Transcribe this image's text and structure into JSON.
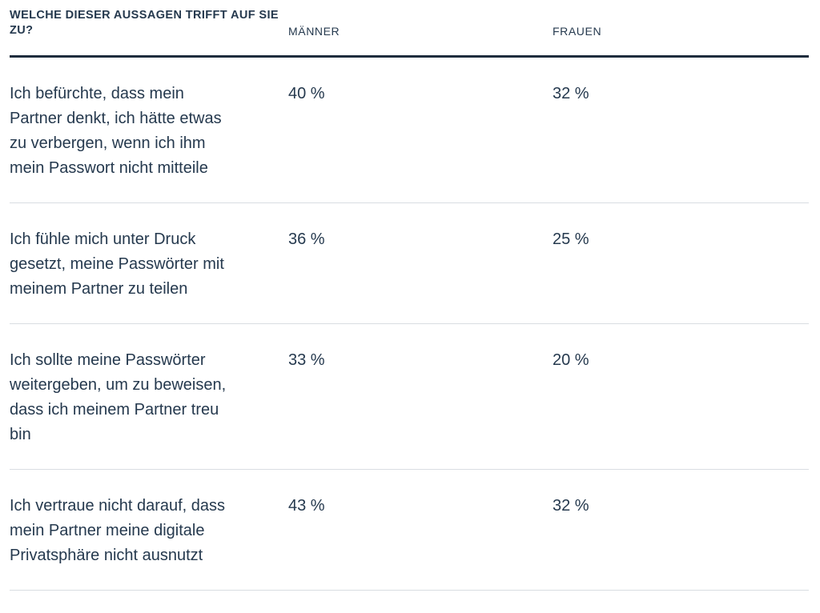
{
  "colors": {
    "text": "#25394E",
    "heavy_rule": "#1E2D3D",
    "divider": "#D9DDE2",
    "background": "#FFFFFF"
  },
  "table": {
    "question_header": "WELCHE DIESER AUSSAGEN TRIFFT AUF SIE ZU?",
    "column_headers": {
      "men": "MÄNNER",
      "women": "FRAUEN"
    },
    "rows": [
      {
        "statement": "Ich befürchte, dass mein Partner denkt, ich hätte etwas zu verbergen, wenn ich ihm mein Passwort nicht mitteile",
        "men": "40 %",
        "women": "32 %"
      },
      {
        "statement": "Ich fühle mich unter Druck gesetzt, meine Passwörter mit meinem Partner zu teilen",
        "men": "36 %",
        "women": "25 %"
      },
      {
        "statement": "Ich sollte meine Passwörter weitergeben, um zu beweisen, dass ich meinem Partner treu bin",
        "men": "33 %",
        "women": "20 %"
      },
      {
        "statement": "Ich vertraue nicht darauf, dass mein Partner meine digitale Privatsphäre nicht ausnutzt",
        "men": "43 %",
        "women": "32 %"
      }
    ]
  },
  "chart_data": {
    "type": "table",
    "title": "WELCHE DIESER AUSSAGEN TRIFFT AUF SIE ZU?",
    "categories": [
      "Ich befürchte, dass mein Partner denkt, ich hätte etwas zu verbergen, wenn ich ihm mein Passwort nicht mitteile",
      "Ich fühle mich unter Druck gesetzt, meine Passwörter mit meinem Partner zu teilen",
      "Ich sollte meine Passwörter weitergeben, um zu beweisen, dass ich meinem Partner treu bin",
      "Ich vertraue nicht darauf, dass mein Partner meine digitale Privatsphäre nicht ausnutzt"
    ],
    "series": [
      {
        "name": "MÄNNER",
        "values": [
          40,
          36,
          33,
          43
        ]
      },
      {
        "name": "FRAUEN",
        "values": [
          32,
          25,
          20,
          32
        ]
      }
    ],
    "unit": "%",
    "legend_position": "top",
    "grid": false
  }
}
